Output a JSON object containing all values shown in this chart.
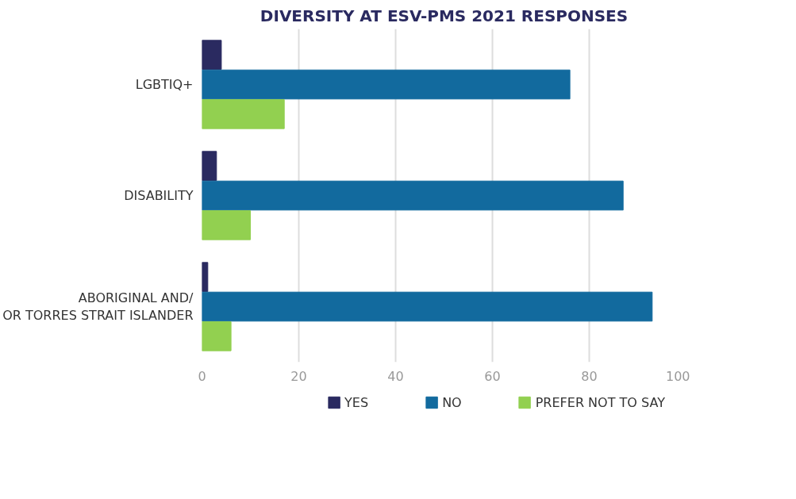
{
  "chart_data": {
    "type": "bar",
    "orientation": "horizontal",
    "title": "DIVERSITY AT ESV-PMS 2021 RESPONSES",
    "categories": [
      "LGBTIQ+",
      "DISABILITY",
      "ABORIGINAL AND/\nOR TORRES STRAIT ISLANDER"
    ],
    "series": [
      {
        "name": "YES",
        "color": "#2a2a60",
        "values": [
          4,
          3,
          1.2
        ]
      },
      {
        "name": "NO",
        "color": "#126a9e",
        "values": [
          76,
          87,
          93
        ]
      },
      {
        "name": "PREFER NOT TO SAY",
        "color": "#92d050",
        "values": [
          17,
          10,
          6
        ]
      }
    ],
    "xlim": [
      0,
      100
    ],
    "xticks": [
      0,
      20,
      40,
      60,
      80,
      100
    ],
    "grid": "x",
    "legend": "bottom"
  }
}
